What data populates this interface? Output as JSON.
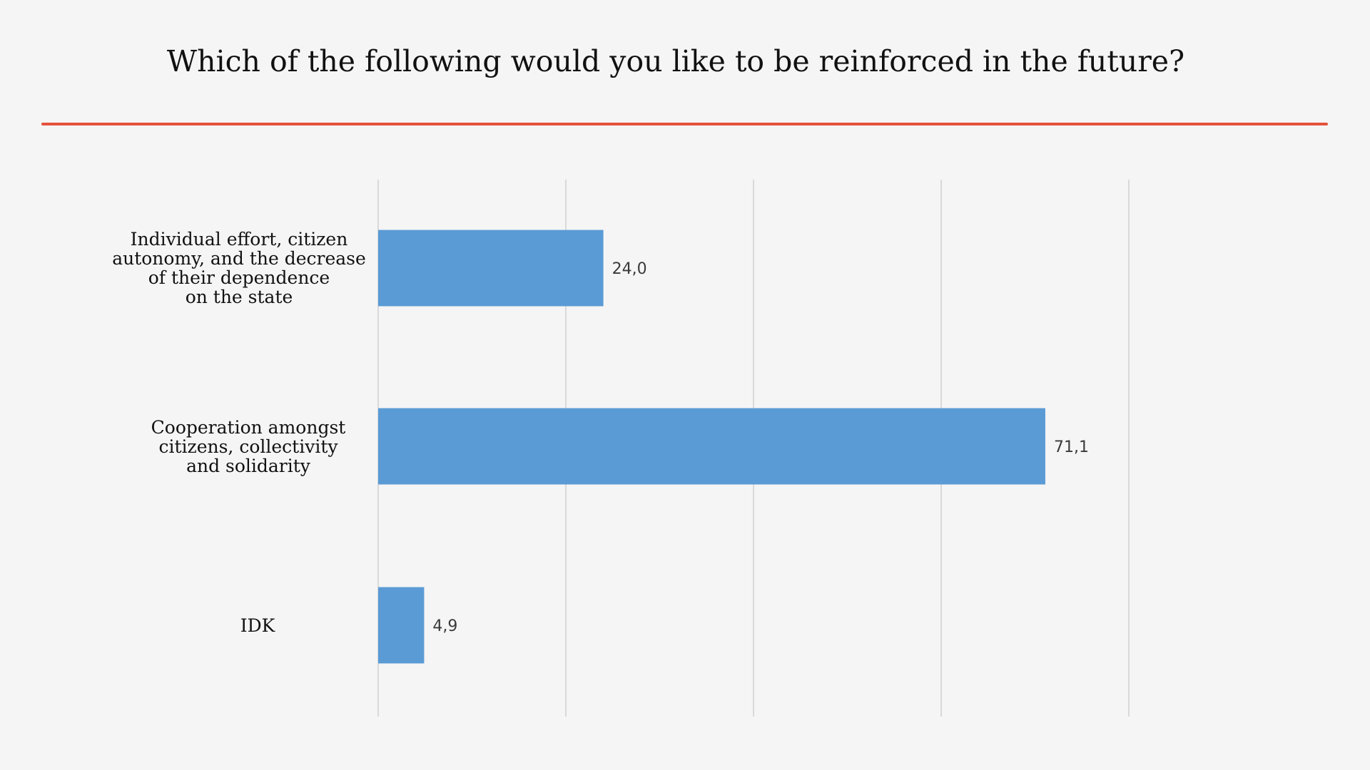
{
  "title": "Which of the following would you like to be reinforced in the future?",
  "colors": {
    "background": "#f5f5f5",
    "divider": "#e4533b",
    "bar": "#5b9bd5",
    "grid": "#d9d9d9",
    "text": "#111111"
  },
  "chart_data": {
    "type": "bar",
    "orientation": "horizontal",
    "title": "Which of the following would you like to be reinforced in the future?",
    "categories": [
      "Individual effort, citizen\nautonomy, and the decrease\nof their dependence\non the state",
      "Cooperation amongst\ncitizens, collectivity\nand solidarity",
      "IDK"
    ],
    "values": [
      24.0,
      71.1,
      4.9
    ],
    "value_labels": [
      "24,0",
      "71,1",
      "4,9"
    ],
    "xlim": [
      0,
      100
    ],
    "gridlines": [
      0,
      20,
      40,
      60,
      80
    ],
    "grid": true,
    "legend": "none",
    "xlabel": "",
    "ylabel": ""
  }
}
